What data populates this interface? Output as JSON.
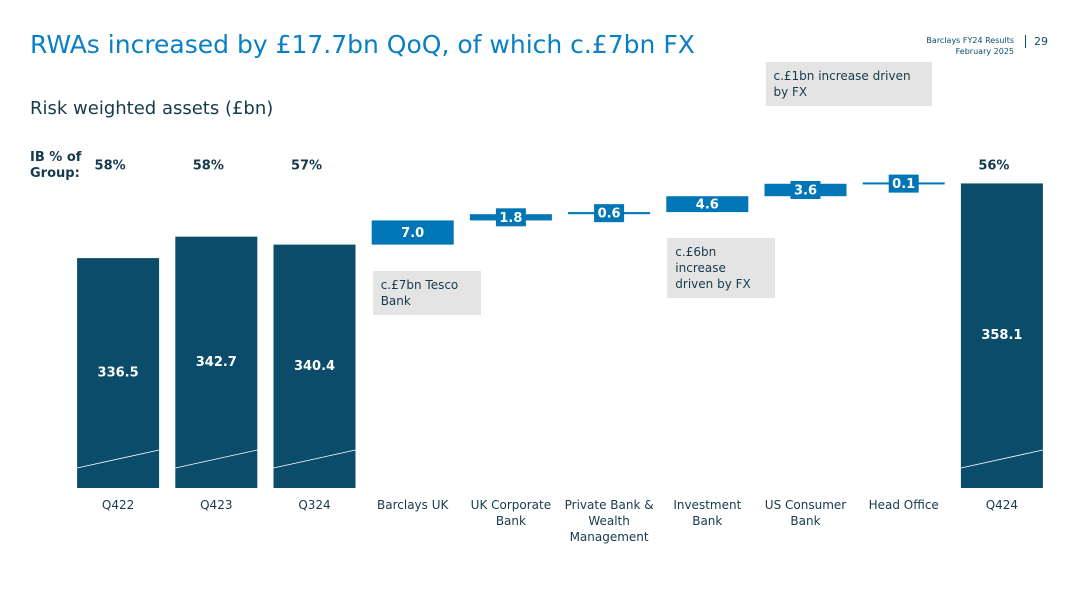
{
  "header": {
    "report": "Barclays FY24 Results",
    "date": "February 2025",
    "page": "29"
  },
  "chart_data": {
    "type": "waterfall",
    "title": "RWAs increased by £17.7bn QoQ, of which c.£7bn FX",
    "subtitle": "Risk weighted assets (£bn)",
    "categories": [
      "Q422",
      "Q423",
      "Q324",
      "Barclays UK",
      "UK Corporate Bank",
      "Private Bank & Wealth Management",
      "Investment Bank",
      "US Consumer Bank",
      "Head Office",
      "Q424"
    ],
    "values": [
      336.5,
      342.7,
      340.4,
      7.0,
      1.8,
      0.6,
      4.6,
      3.6,
      0.1,
      358.1
    ],
    "value_labels": [
      "336.5",
      "342.7",
      "340.4",
      "7.0",
      "1.8",
      "0.6",
      "4.6",
      "3.6",
      "0.1",
      "358.1"
    ],
    "measure": [
      "absolute",
      "absolute",
      "absolute",
      "relative",
      "relative",
      "relative",
      "relative",
      "relative",
      "relative",
      "total"
    ],
    "total_color": "#0b4c6b",
    "delta_color": "#0076b6",
    "ylim": [
      270,
      375
    ],
    "ib_share": {
      "label": "IB % of Group:",
      "values": [
        58,
        58,
        57,
        null,
        null,
        null,
        null,
        null,
        null,
        56
      ],
      "value_labels": [
        "58%",
        "58%",
        "57%",
        null,
        null,
        null,
        null,
        null,
        null,
        "56%"
      ]
    },
    "annotations": [
      {
        "text": "c.£7bn Tesco Bank",
        "category": "Barclays UK",
        "position": "below"
      },
      {
        "text": "c.£6bn increase driven by FX",
        "category": "Investment Bank",
        "position": "below"
      },
      {
        "text": "c.£1bn increase driven by FX",
        "category": "US Consumer Bank",
        "position": "above"
      }
    ]
  }
}
